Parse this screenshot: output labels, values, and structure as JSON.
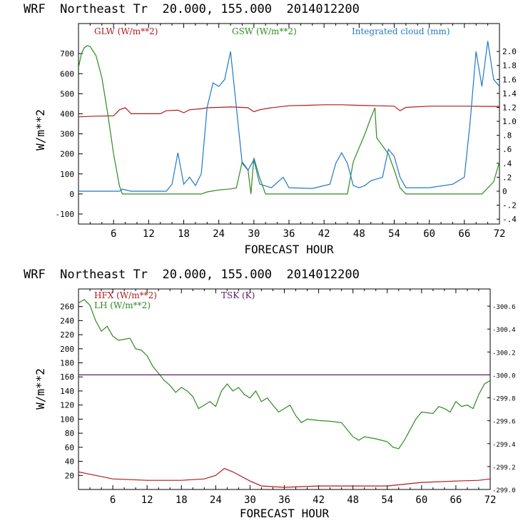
{
  "chart_data": [
    {
      "type": "line",
      "title": "WRF  Northeast Tr  20.000, 155.000  2014012200",
      "xlabel": "FORECAST HOUR",
      "ylabel": "W/m**2",
      "xlim": [
        0,
        72
      ],
      "ylim": [
        -150,
        850
      ],
      "ylim_right": [
        -0.47,
        2.4
      ],
      "x_ticks": [
        6,
        12,
        18,
        24,
        30,
        36,
        42,
        48,
        54,
        60,
        66,
        72
      ],
      "y_ticks": [
        -100,
        0,
        100,
        200,
        300,
        400,
        500,
        600,
        700
      ],
      "y_ticks_right": [
        "-.4",
        "-.2",
        "0",
        ".2",
        ".4",
        ".6",
        ".8",
        "1.0",
        "1.2",
        "1.4",
        "1.6",
        "1.8",
        "2.0"
      ],
      "series": [
        {
          "name": "GLW (W/m**2)",
          "color": "#b01a1a",
          "axis": "left",
          "points": [
            [
              0,
              385
            ],
            [
              3,
              388
            ],
            [
              6,
              390
            ],
            [
              7,
              420
            ],
            [
              8,
              430
            ],
            [
              9,
              400
            ],
            [
              12,
              400
            ],
            [
              14,
              400
            ],
            [
              15,
              415
            ],
            [
              17,
              418
            ],
            [
              18,
              405
            ],
            [
              19,
              420
            ],
            [
              21,
              425
            ],
            [
              22,
              430
            ],
            [
              24,
              432
            ],
            [
              26,
              434
            ],
            [
              28,
              432
            ],
            [
              29,
              430
            ],
            [
              30,
              410
            ],
            [
              31,
              420
            ],
            [
              33,
              430
            ],
            [
              36,
              440
            ],
            [
              39,
              442
            ],
            [
              42,
              445
            ],
            [
              45,
              445
            ],
            [
              48,
              442
            ],
            [
              51,
              440
            ],
            [
              54,
              438
            ],
            [
              55,
              415
            ],
            [
              56,
              432
            ],
            [
              60,
              438
            ],
            [
              66,
              438
            ],
            [
              70,
              437
            ],
            [
              72,
              437
            ]
          ]
        },
        {
          "name": "GSW (W/m**2)",
          "color": "#2e8a1f",
          "axis": "left",
          "points": [
            [
              0,
              630
            ],
            [
              0.5,
              700
            ],
            [
              1,
              730
            ],
            [
              1.5,
              740
            ],
            [
              2,
              735
            ],
            [
              3,
              690
            ],
            [
              4,
              580
            ],
            [
              5,
              400
            ],
            [
              6,
              200
            ],
            [
              7,
              40
            ],
            [
              7.5,
              0
            ],
            [
              21,
              0
            ],
            [
              22,
              10
            ],
            [
              24,
              20
            ],
            [
              26,
              25
            ],
            [
              27,
              30
            ],
            [
              28,
              160
            ],
            [
              29,
              120
            ],
            [
              29.5,
              0
            ],
            [
              30,
              180
            ],
            [
              31,
              80
            ],
            [
              32,
              0
            ],
            [
              46,
              0
            ],
            [
              47,
              160
            ],
            [
              48,
              230
            ],
            [
              49,
              300
            ],
            [
              50,
              380
            ],
            [
              50.7,
              430
            ],
            [
              51,
              280
            ],
            [
              53,
              200
            ],
            [
              54,
              120
            ],
            [
              55,
              30
            ],
            [
              56,
              0
            ],
            [
              69,
              0
            ],
            [
              70,
              30
            ],
            [
              71,
              60
            ],
            [
              72,
              160
            ]
          ]
        },
        {
          "name": "Integrated cloud (mm)",
          "color": "#1f78c8",
          "axis": "right",
          "points": [
            [
              0,
              0
            ],
            [
              7,
              0
            ],
            [
              7.5,
              0.03
            ],
            [
              8,
              0.02
            ],
            [
              9,
              0
            ],
            [
              15,
              0
            ],
            [
              16,
              0.1
            ],
            [
              17,
              0.55
            ],
            [
              18,
              0.1
            ],
            [
              19,
              0.2
            ],
            [
              20,
              0.08
            ],
            [
              21,
              0.25
            ],
            [
              22,
              1.2
            ],
            [
              23,
              1.55
            ],
            [
              24,
              1.5
            ],
            [
              25,
              1.6
            ],
            [
              26,
              2.0
            ],
            [
              27,
              1.2
            ],
            [
              28,
              0.4
            ],
            [
              29,
              0.3
            ],
            [
              30,
              0.45
            ],
            [
              31,
              0.1
            ],
            [
              33,
              0.05
            ],
            [
              35,
              0.2
            ],
            [
              36,
              0.05
            ],
            [
              40,
              0.04
            ],
            [
              43,
              0.1
            ],
            [
              44,
              0.4
            ],
            [
              45,
              0.55
            ],
            [
              46,
              0.4
            ],
            [
              47,
              0.08
            ],
            [
              48,
              0.05
            ],
            [
              49,
              0.08
            ],
            [
              50,
              0.15
            ],
            [
              52,
              0.2
            ],
            [
              53,
              0.6
            ],
            [
              54,
              0.5
            ],
            [
              55,
              0.2
            ],
            [
              56,
              0.05
            ],
            [
              60,
              0.05
            ],
            [
              64,
              0.1
            ],
            [
              66,
              0.2
            ],
            [
              67,
              1.0
            ],
            [
              68,
              2.0
            ],
            [
              69,
              1.5
            ],
            [
              70,
              2.15
            ],
            [
              71,
              1.6
            ],
            [
              72,
              1.5
            ]
          ]
        }
      ]
    },
    {
      "type": "line",
      "title": "WRF  Northeast Tr  20.000, 155.000  2014012200",
      "xlabel": "FORECAST HOUR",
      "ylabel": "W/m**2",
      "xlim": [
        0,
        72
      ],
      "ylim": [
        0,
        285
      ],
      "ylim_right": [
        299.0,
        300.75
      ],
      "x_ticks": [
        6,
        12,
        18,
        24,
        30,
        36,
        42,
        48,
        54,
        60,
        66,
        72
      ],
      "y_ticks": [
        20,
        40,
        60,
        80,
        100,
        120,
        140,
        160,
        180,
        200,
        220,
        240,
        260
      ],
      "y_ticks_right": [
        "299.0",
        "299.2",
        "299.4",
        "299.6",
        "299.8",
        "300.0",
        "300.2",
        "300.4",
        "300.6"
      ],
      "series": [
        {
          "name": "HFX (W/m**2)",
          "color": "#b01a1a",
          "axis": "left",
          "points": [
            [
              0,
              25
            ],
            [
              3,
              20
            ],
            [
              6,
              15
            ],
            [
              12,
              13
            ],
            [
              18,
              13
            ],
            [
              22,
              15
            ],
            [
              24,
              20
            ],
            [
              25.5,
              30
            ],
            [
              27,
              25
            ],
            [
              30,
              12
            ],
            [
              32,
              5
            ],
            [
              36,
              3
            ],
            [
              42,
              5
            ],
            [
              48,
              5
            ],
            [
              54,
              5
            ],
            [
              60,
              10
            ],
            [
              66,
              12
            ],
            [
              70,
              13
            ],
            [
              72,
              15
            ]
          ]
        },
        {
          "name": "LH (W/m**2)",
          "color": "#2e8a1f",
          "axis": "left",
          "points": [
            [
              0,
              265
            ],
            [
              1,
              270
            ],
            [
              2,
              262
            ],
            [
              3,
              240
            ],
            [
              4,
              225
            ],
            [
              5,
              232
            ],
            [
              6,
              218
            ],
            [
              7,
              212
            ],
            [
              9,
              215
            ],
            [
              10,
              200
            ],
            [
              11,
              198
            ],
            [
              12,
              190
            ],
            [
              13,
              175
            ],
            [
              14,
              165
            ],
            [
              15,
              155
            ],
            [
              16,
              148
            ],
            [
              17,
              138
            ],
            [
              18,
              145
            ],
            [
              19,
              140
            ],
            [
              20,
              132
            ],
            [
              21,
              115
            ],
            [
              22,
              120
            ],
            [
              23,
              125
            ],
            [
              24,
              118
            ],
            [
              25,
              140
            ],
            [
              26,
              150
            ],
            [
              27,
              140
            ],
            [
              28,
              145
            ],
            [
              29,
              135
            ],
            [
              30,
              130
            ],
            [
              31,
              140
            ],
            [
              32,
              125
            ],
            [
              33,
              130
            ],
            [
              34,
              120
            ],
            [
              35,
              110
            ],
            [
              36,
              115
            ],
            [
              37,
              120
            ],
            [
              38,
              105
            ],
            [
              39,
              95
            ],
            [
              40,
              100
            ],
            [
              42,
              98
            ],
            [
              44,
              97
            ],
            [
              46,
              95
            ],
            [
              47,
              85
            ],
            [
              48,
              75
            ],
            [
              49,
              70
            ],
            [
              50,
              75
            ],
            [
              52,
              72
            ],
            [
              54,
              68
            ],
            [
              55,
              60
            ],
            [
              56,
              58
            ],
            [
              57,
              70
            ],
            [
              58,
              85
            ],
            [
              59,
              100
            ],
            [
              60,
              110
            ],
            [
              62,
              108
            ],
            [
              63,
              118
            ],
            [
              64,
              115
            ],
            [
              65,
              110
            ],
            [
              66,
              125
            ],
            [
              67,
              118
            ],
            [
              68,
              120
            ],
            [
              69,
              115
            ],
            [
              70,
              135
            ],
            [
              71,
              150
            ],
            [
              72,
              155
            ]
          ]
        },
        {
          "name": "TSK (K)",
          "color": "#5a1a6a",
          "axis": "right",
          "points": [
            [
              0,
              300.0
            ],
            [
              72,
              300.0
            ]
          ]
        }
      ]
    }
  ]
}
